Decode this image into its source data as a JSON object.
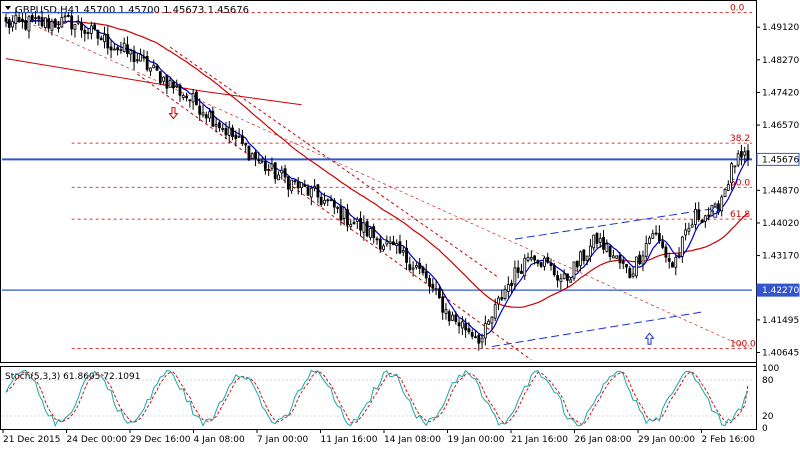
{
  "chart_data": [
    {
      "type": "candlestick",
      "symbol_header": "GBPUSD,H4",
      "ohlc_header": "1.45700 1.45700 1.45673 1.45676",
      "price_ticks": [
        "1.49120",
        "1.48270",
        "1.47420",
        "1.46570",
        "1.45676",
        "1.44870",
        "1.44020",
        "1.43170",
        "1.42270",
        "1.41495",
        "1.40645"
      ],
      "ylim": [
        1.4045,
        1.4975
      ],
      "time_labels": [
        "21 Dec 2015",
        "24 Dec 00:00",
        "29 Dec 16:00",
        "4 Jan 08:00",
        "7 Jan 00:00",
        "11 Jan 16:00",
        "14 Jan 08:00",
        "19 Jan 00:00",
        "21 Jan 16:00",
        "26 Jan 08:00",
        "29 Jan 00:00",
        "2 Feb 16:00"
      ],
      "current_price_label": "1.45676",
      "support_label": "1.42270",
      "colors": {
        "up": "#000000",
        "down": "#000000",
        "ma_fast": "#0000cc",
        "ma_slow": "#cc0000",
        "hline": "#3355cc",
        "fib": "#cc0000",
        "channel": "#1a33cc"
      },
      "fibonacci": [
        {
          "label": "0.0",
          "price": 1.495
        },
        {
          "label": "38.2",
          "price": 1.461
        },
        {
          "label": "50.0",
          "price": 1.4495
        },
        {
          "label": "61.8",
          "price": 1.4412
        },
        {
          "label": "100.0",
          "price": 1.4075
        }
      ],
      "horizontal_lines": [
        1.45676,
        1.4227
      ],
      "key_points": [
        {
          "bar": 0,
          "price": 1.492
        },
        {
          "bar": 20,
          "price": 1.4925
        },
        {
          "bar": 40,
          "price": 1.483
        },
        {
          "bar": 60,
          "price": 1.47
        },
        {
          "bar": 80,
          "price": 1.454
        },
        {
          "bar": 95,
          "price": 1.447
        },
        {
          "bar": 110,
          "price": 1.438
        },
        {
          "bar": 125,
          "price": 1.429
        },
        {
          "bar": 135,
          "price": 1.416
        },
        {
          "bar": 145,
          "price": 1.41
        },
        {
          "bar": 152,
          "price": 1.423
        },
        {
          "bar": 160,
          "price": 1.433
        },
        {
          "bar": 170,
          "price": 1.425
        },
        {
          "bar": 180,
          "price": 1.436
        },
        {
          "bar": 190,
          "price": 1.427
        },
        {
          "bar": 197,
          "price": 1.438
        },
        {
          "bar": 203,
          "price": 1.429
        },
        {
          "bar": 210,
          "price": 1.442
        },
        {
          "bar": 216,
          "price": 1.443
        },
        {
          "bar": 222,
          "price": 1.456
        },
        {
          "bar": 226,
          "price": 1.4567
        }
      ],
      "bar_count": 227
    },
    {
      "type": "line",
      "title": "Stoch(5,3,3) 61.8605 72.1091",
      "y_ticks": [
        "100",
        "80",
        "20",
        "0"
      ],
      "ylim": [
        0,
        100
      ],
      "series": [
        {
          "name": "main",
          "color": "#1aa5a5"
        },
        {
          "name": "signal",
          "color": "#cc0000"
        }
      ]
    }
  ]
}
